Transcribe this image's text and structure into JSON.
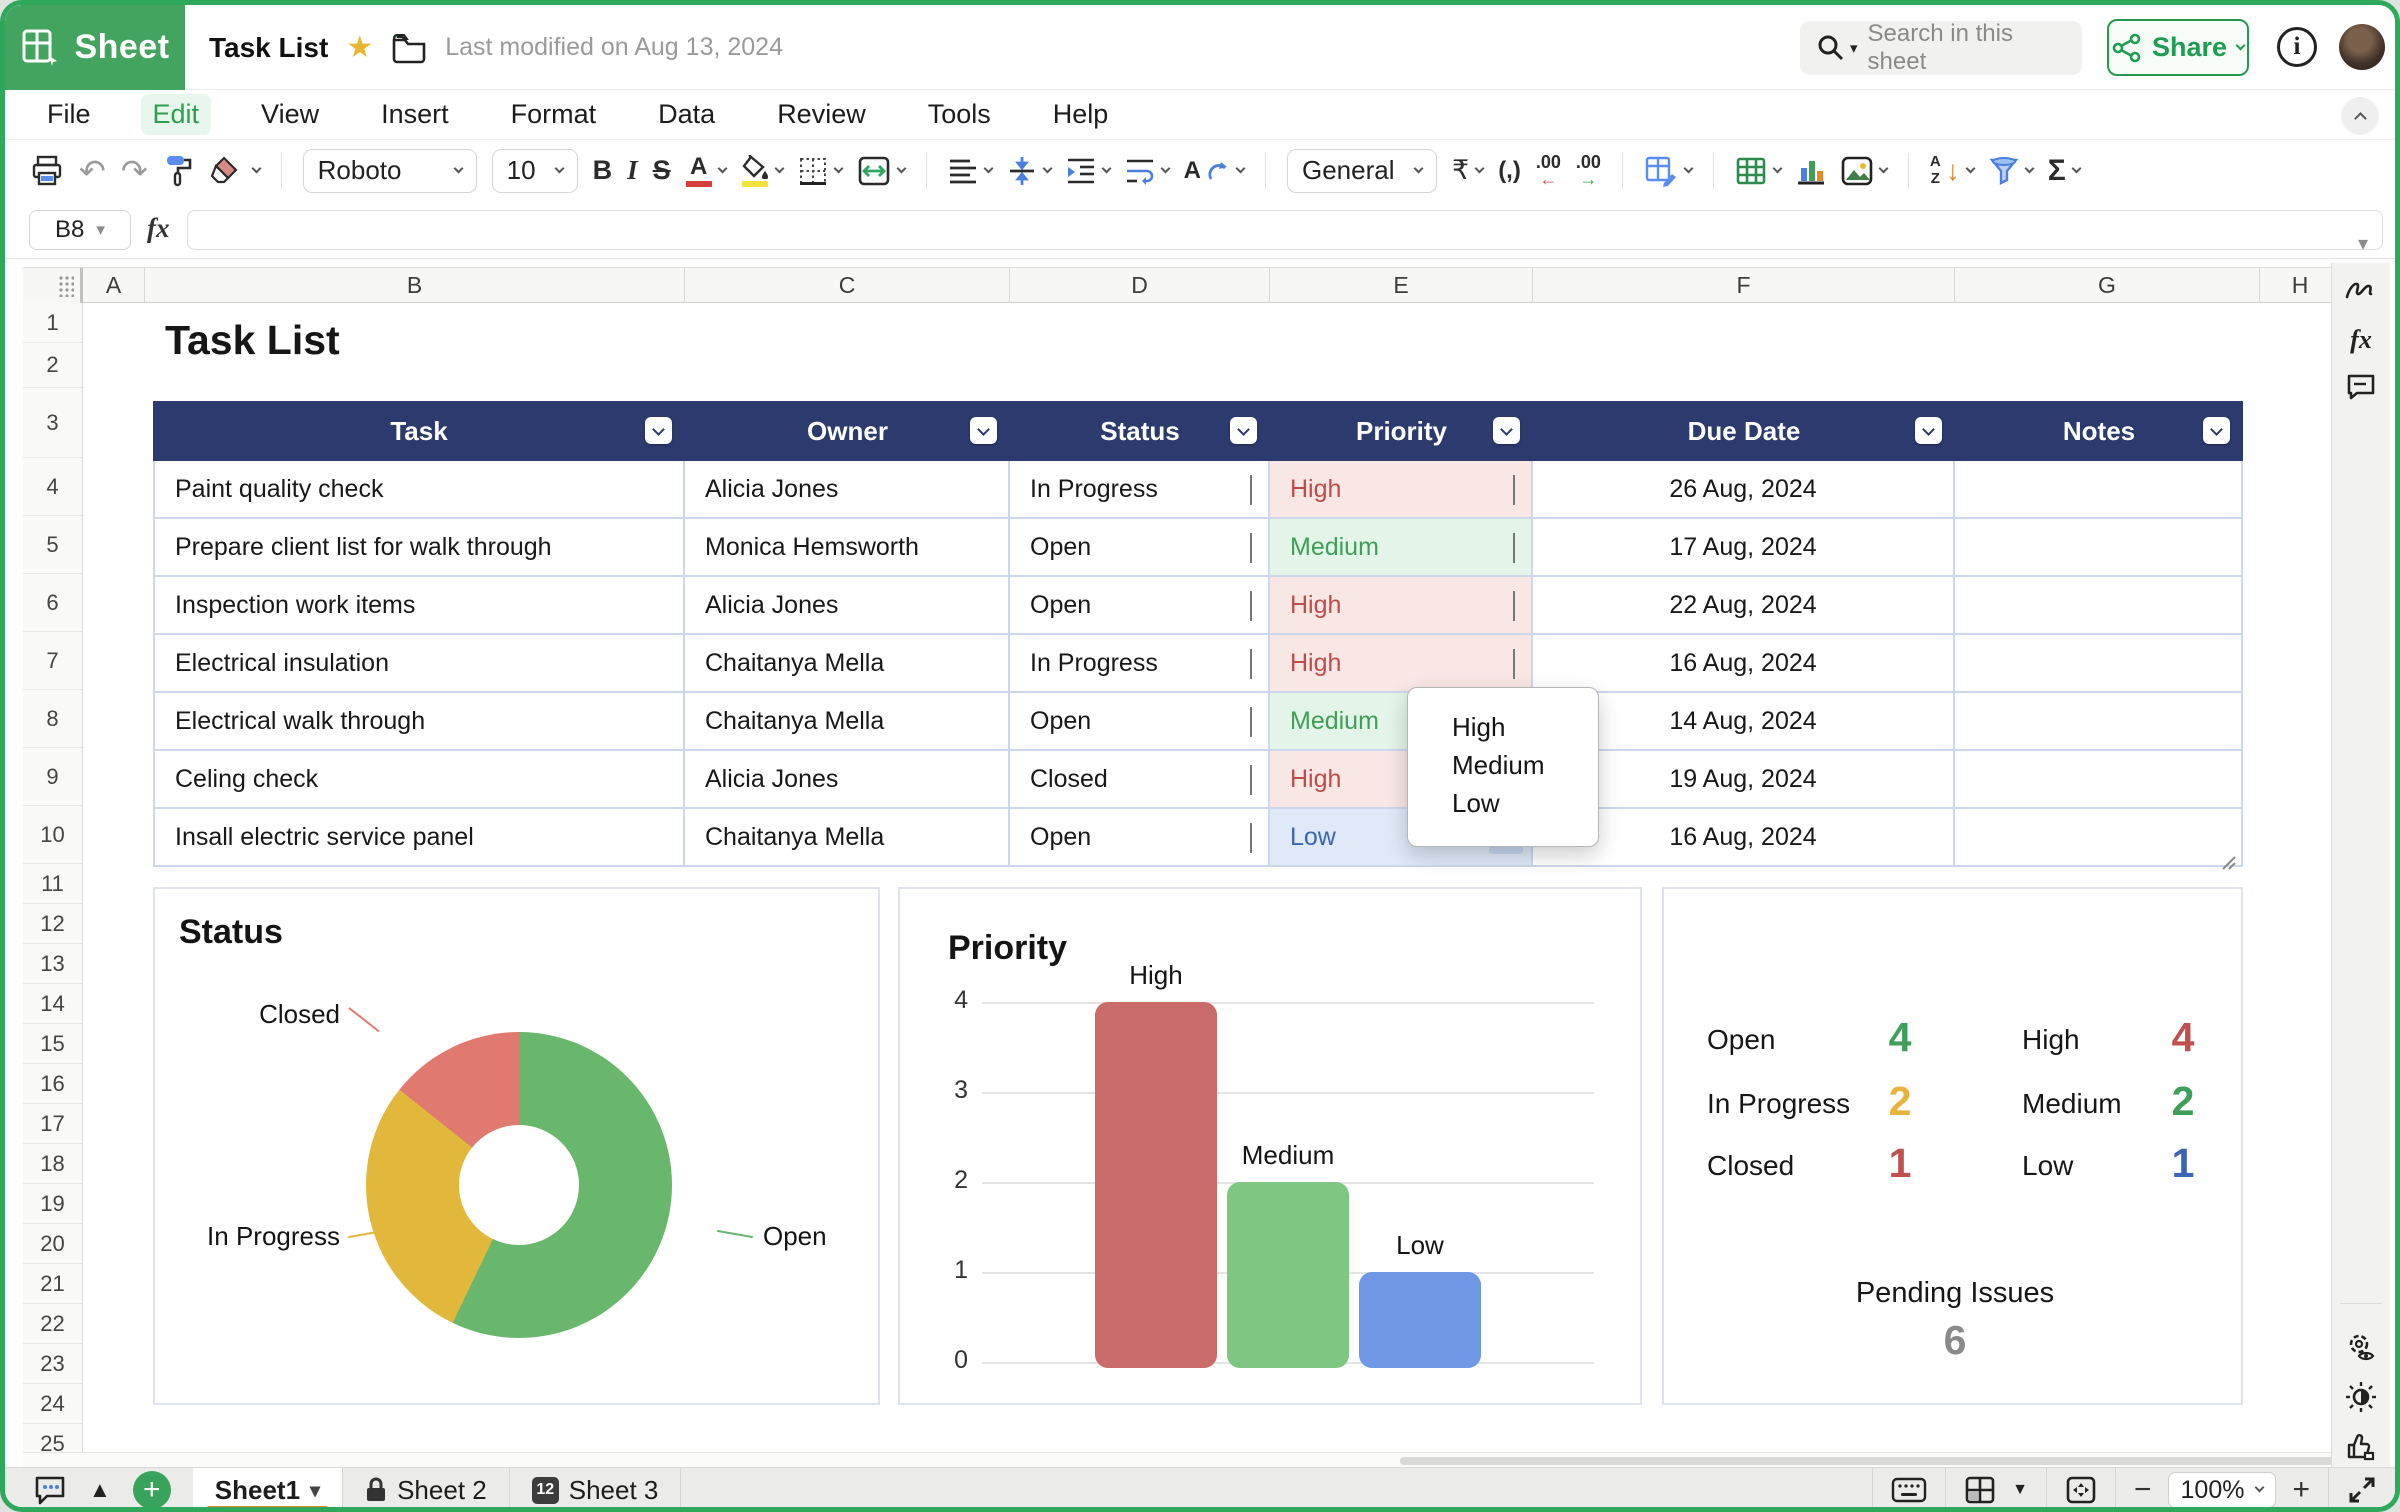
{
  "app": {
    "brand": "Sheet",
    "title": "Task List",
    "last_modified": "Last modified on Aug 13, 2024"
  },
  "topbar": {
    "search_placeholder": "Search in this sheet",
    "share_label": "Share"
  },
  "menu": {
    "items": [
      "File",
      "Edit",
      "View",
      "Insert",
      "Format",
      "Data",
      "Review",
      "Tools",
      "Help"
    ],
    "active": "Edit"
  },
  "toolbar": {
    "font": "Roboto",
    "font_size": "10",
    "number_format": "General"
  },
  "formula": {
    "cell_ref": "B8",
    "fx_label": "fx",
    "value": ""
  },
  "grid": {
    "sheet_title": "Task List",
    "columns": [
      "A",
      "B",
      "C",
      "D",
      "E",
      "F",
      "G",
      "H"
    ],
    "row_count": 25
  },
  "table": {
    "headers": [
      "Task",
      "Owner",
      "Status",
      "Priority",
      "Due Date",
      "Notes"
    ],
    "rows": [
      {
        "task": "Paint quality check",
        "owner": "Alicia Jones",
        "status": "In Progress",
        "priority": "High",
        "due_date": "26 Aug, 2024",
        "notes": ""
      },
      {
        "task": "Prepare client list for walk through",
        "owner": "Monica Hemsworth",
        "status": "Open",
        "priority": "Medium",
        "due_date": "17 Aug, 2024",
        "notes": ""
      },
      {
        "task": "Inspection work items",
        "owner": "Alicia Jones",
        "status": "Open",
        "priority": "High",
        "due_date": "22 Aug, 2024",
        "notes": ""
      },
      {
        "task": "Electrical insulation",
        "owner": "Chaitanya Mella",
        "status": "In Progress",
        "priority": "High",
        "due_date": "16 Aug, 2024",
        "notes": ""
      },
      {
        "task": "Electrical walk through",
        "owner": "Chaitanya Mella",
        "status": "Open",
        "priority": "Medium",
        "due_date": "14 Aug, 2024",
        "notes": ""
      },
      {
        "task": "Celing check",
        "owner": "Alicia Jones",
        "status": "Closed",
        "priority": "High",
        "due_date": "19 Aug, 2024",
        "notes": ""
      },
      {
        "task": "Insall electric service panel",
        "owner": "Chaitanya Mella",
        "status": "Open",
        "priority": "Low",
        "due_date": "16 Aug, 2024",
        "notes": ""
      }
    ],
    "priority_colors": {
      "High": {
        "bg": "#f9e7e6",
        "text": "#bf4b48"
      },
      "Medium": {
        "bg": "#e4f4e8",
        "text": "#3f9e57"
      },
      "Low": {
        "bg": "#dfe9f8",
        "text": "#3c64b5"
      }
    }
  },
  "dropdown": {
    "options": [
      "High",
      "Medium",
      "Low"
    ]
  },
  "chart_data": [
    {
      "type": "pie",
      "donut": true,
      "title": "Status",
      "labels": [
        "Open",
        "In Progress",
        "Closed"
      ],
      "values": [
        4,
        2,
        1
      ],
      "colors": [
        "#69b76c",
        "#e2b83c",
        "#e0796f"
      ],
      "legend_position": "callout-labels"
    },
    {
      "type": "bar",
      "title": "Priority",
      "categories": [
        "High",
        "Medium",
        "Low"
      ],
      "values": [
        4,
        2,
        1
      ],
      "colors": [
        "#c96b68",
        "#7ec682",
        "#6f97e3"
      ],
      "ylim": [
        0,
        4
      ],
      "yticks": [
        0,
        1,
        2,
        3,
        4
      ],
      "grid": true
    }
  ],
  "summary": {
    "status": [
      {
        "label": "Open",
        "value": "4",
        "color": "#3f9e57"
      },
      {
        "label": "In Progress",
        "value": "2",
        "color": "#e8b33c"
      },
      {
        "label": "Closed",
        "value": "1",
        "color": "#c0504d"
      }
    ],
    "priority": [
      {
        "label": "High",
        "value": "4",
        "color": "#c0504d"
      },
      {
        "label": "Medium",
        "value": "2",
        "color": "#3f9e57"
      },
      {
        "label": "Low",
        "value": "1",
        "color": "#3c64b5"
      }
    ],
    "pending_label": "Pending Issues",
    "pending_value": "6"
  },
  "sheets": [
    {
      "label": "Sheet1",
      "active": true
    },
    {
      "label": "Sheet 2",
      "locked": true
    },
    {
      "label": "Sheet 3",
      "badge": "12"
    }
  ],
  "statusbar": {
    "zoom": "100%"
  }
}
